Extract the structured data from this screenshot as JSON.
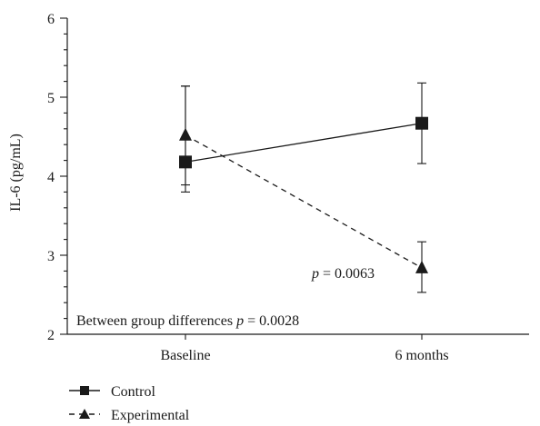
{
  "chart_data": {
    "type": "line",
    "title": "",
    "xlabel": "",
    "ylabel": "IL-6 (pg/mL)",
    "categories": [
      "Baseline",
      "6 months"
    ],
    "ylim": [
      2,
      6
    ],
    "yticks": [
      2,
      3,
      4,
      5,
      6
    ],
    "grid": false,
    "series": [
      {
        "name": "Control",
        "marker": "square",
        "line_style": "solid",
        "values": [
          4.18,
          4.67
        ],
        "error_low": [
          3.8,
          4.16
        ],
        "error_high": [
          5.14,
          5.18
        ]
      },
      {
        "name": "Experimental",
        "marker": "triangle",
        "line_style": "dashed",
        "values": [
          4.52,
          2.84
        ],
        "error_low": [
          3.89,
          2.53
        ],
        "error_high": [
          5.14,
          3.17
        ]
      }
    ],
    "annotations": {
      "point_p_prefix": "p",
      "point_p_value": " = 0.0063",
      "between_text": "Between group differences ",
      "between_p_prefix": "p",
      "between_p_value": " = 0.0028"
    },
    "legend_position": "bottom-left",
    "colors": {
      "ink": "#1a1a1a"
    }
  }
}
